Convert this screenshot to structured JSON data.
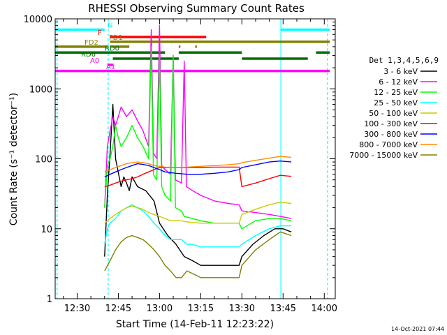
{
  "chart_data": {
    "type": "line",
    "title": "RHESSI Observing Summary Count Rates",
    "xlabel": "Start Time (14-Feb-11 12:23:22)",
    "ylabel": "Count Rate (s⁻¹ detector⁻¹)",
    "y_log": true,
    "ylim": [
      1,
      10000
    ],
    "xlim_minutes": [
      22.0,
      124.0
    ],
    "x_ticks": [
      {
        "minute": 30,
        "label": "12:30"
      },
      {
        "minute": 45,
        "label": "12:45"
      },
      {
        "minute": 60,
        "label": "13:00"
      },
      {
        "minute": 75,
        "label": "13:15"
      },
      {
        "minute": 90,
        "label": "13:30"
      },
      {
        "minute": 105,
        "label": "13:45"
      },
      {
        "minute": 120,
        "label": "14:00"
      }
    ],
    "y_ticks": [
      {
        "value": 1,
        "label": "1"
      },
      {
        "value": 10,
        "label": "10"
      },
      {
        "value": 100,
        "label": "100"
      },
      {
        "value": 1000,
        "label": "1000"
      },
      {
        "value": 10000,
        "label": "10000"
      }
    ],
    "legend_title": "Det 1,3,4,5,6,9",
    "legend_position": "right",
    "timestamp": "14-Oct-2021 07:44",
    "series": [
      {
        "name": "3 - 6 keV",
        "color": "#000000",
        "points": [
          [
            40,
            4
          ],
          [
            41,
            30
          ],
          [
            42,
            120
          ],
          [
            43,
            600
          ],
          [
            44,
            100
          ],
          [
            46,
            40
          ],
          [
            47,
            55
          ],
          [
            48,
            45
          ],
          [
            49,
            35
          ],
          [
            50,
            55
          ],
          [
            52,
            40
          ],
          [
            55,
            35
          ],
          [
            58,
            25
          ],
          [
            60,
            12
          ],
          [
            63,
            8
          ],
          [
            66,
            6
          ],
          [
            69,
            4
          ],
          [
            72,
            3.5
          ],
          [
            75,
            3
          ],
          [
            80,
            3
          ],
          [
            85,
            3
          ],
          [
            89,
            3
          ],
          [
            90,
            4
          ],
          [
            94,
            6
          ],
          [
            98,
            8
          ],
          [
            102,
            10
          ],
          [
            105,
            10
          ],
          [
            108,
            9
          ]
        ]
      },
      {
        "name": "6 - 12 keV",
        "color": "#ff00ff",
        "points": [
          [
            40,
            20
          ],
          [
            41,
            150
          ],
          [
            42,
            250
          ],
          [
            43,
            400
          ],
          [
            44,
            300
          ],
          [
            45,
            400
          ],
          [
            46,
            550
          ],
          [
            48,
            400
          ],
          [
            50,
            500
          ],
          [
            52,
            350
          ],
          [
            54,
            250
          ],
          [
            56,
            150
          ],
          [
            57,
            7000
          ],
          [
            57.8,
            120
          ],
          [
            59,
            100
          ],
          [
            60,
            8000
          ],
          [
            60.8,
            80
          ],
          [
            62,
            70
          ],
          [
            64,
            60
          ],
          [
            65,
            3000
          ],
          [
            65.8,
            50
          ],
          [
            68,
            45
          ],
          [
            69,
            2500
          ],
          [
            69.8,
            40
          ],
          [
            72,
            35
          ],
          [
            75,
            30
          ],
          [
            80,
            25
          ],
          [
            85,
            23
          ],
          [
            89,
            22
          ],
          [
            90,
            18
          ],
          [
            95,
            17
          ],
          [
            100,
            16
          ],
          [
            104,
            15
          ],
          [
            108,
            14
          ]
        ]
      },
      {
        "name": "12 - 25 keV",
        "color": "#00ff00",
        "points": [
          [
            40,
            20
          ],
          [
            41,
            80
          ],
          [
            42,
            100
          ],
          [
            43,
            150
          ],
          [
            44,
            300
          ],
          [
            45,
            200
          ],
          [
            46,
            150
          ],
          [
            48,
            200
          ],
          [
            50,
            300
          ],
          [
            52,
            200
          ],
          [
            54,
            150
          ],
          [
            56,
            100
          ],
          [
            57,
            4000
          ],
          [
            57.8,
            60
          ],
          [
            59,
            50
          ],
          [
            60,
            3000
          ],
          [
            60.8,
            40
          ],
          [
            62,
            30
          ],
          [
            64,
            25
          ],
          [
            65,
            3000
          ],
          [
            65.8,
            20
          ],
          [
            68,
            18
          ],
          [
            69,
            15
          ],
          [
            72,
            14
          ],
          [
            75,
            13
          ],
          [
            80,
            12
          ],
          [
            85,
            12
          ],
          [
            89,
            12
          ],
          [
            90,
            10
          ],
          [
            95,
            13
          ],
          [
            100,
            14
          ],
          [
            104,
            14
          ],
          [
            108,
            13
          ]
        ]
      },
      {
        "name": "25 - 50 keV",
        "color": "#00ffff",
        "points": [
          [
            40,
            6
          ],
          [
            41,
            10
          ],
          [
            42,
            12
          ],
          [
            44,
            14
          ],
          [
            46,
            18
          ],
          [
            48,
            20
          ],
          [
            50,
            22
          ],
          [
            52,
            20
          ],
          [
            54,
            18
          ],
          [
            56,
            15
          ],
          [
            58,
            12
          ],
          [
            60,
            10
          ],
          [
            62,
            8
          ],
          [
            64,
            7
          ],
          [
            66,
            7
          ],
          [
            68,
            7
          ],
          [
            70,
            6
          ],
          [
            72,
            6
          ],
          [
            75,
            5.5
          ],
          [
            80,
            5.5
          ],
          [
            85,
            5.5
          ],
          [
            89,
            5.5
          ],
          [
            90,
            6
          ],
          [
            95,
            8
          ],
          [
            100,
            10
          ],
          [
            104,
            11
          ],
          [
            108,
            11
          ]
        ]
      },
      {
        "name": "50 - 100 keV",
        "color": "#cccc00",
        "points": [
          [
            40,
            12
          ],
          [
            42,
            14
          ],
          [
            44,
            16
          ],
          [
            46,
            18
          ],
          [
            48,
            20
          ],
          [
            50,
            21
          ],
          [
            52,
            20
          ],
          [
            54,
            19
          ],
          [
            56,
            17
          ],
          [
            58,
            16
          ],
          [
            60,
            15
          ],
          [
            62,
            14
          ],
          [
            64,
            13
          ],
          [
            66,
            13
          ],
          [
            68,
            13
          ],
          [
            70,
            12.5
          ],
          [
            75,
            12
          ],
          [
            80,
            12
          ],
          [
            85,
            12
          ],
          [
            89,
            12
          ],
          [
            90,
            16
          ],
          [
            95,
            19
          ],
          [
            100,
            22
          ],
          [
            104,
            24
          ],
          [
            108,
            23
          ]
        ]
      },
      {
        "name": "100 - 300 keV",
        "color": "#ff0000",
        "points": [
          [
            40,
            40
          ],
          [
            42,
            42
          ],
          [
            44,
            45
          ],
          [
            46,
            48
          ],
          [
            48,
            50
          ],
          [
            50,
            52
          ],
          [
            52,
            55
          ],
          [
            54,
            60
          ],
          [
            56,
            65
          ],
          [
            58,
            70
          ],
          [
            60,
            75
          ],
          [
            62,
            75
          ],
          [
            66,
            75
          ],
          [
            70,
            75
          ],
          [
            75,
            75
          ],
          [
            80,
            76
          ],
          [
            85,
            76
          ],
          [
            89,
            76
          ],
          [
            90,
            40
          ],
          [
            95,
            45
          ],
          [
            100,
            52
          ],
          [
            104,
            58
          ],
          [
            108,
            56
          ]
        ]
      },
      {
        "name": "300 - 800 keV",
        "color": "#0000ff",
        "points": [
          [
            40,
            55
          ],
          [
            42,
            60
          ],
          [
            44,
            65
          ],
          [
            46,
            70
          ],
          [
            48,
            75
          ],
          [
            50,
            80
          ],
          [
            52,
            85
          ],
          [
            54,
            83
          ],
          [
            56,
            80
          ],
          [
            58,
            75
          ],
          [
            60,
            70
          ],
          [
            62,
            65
          ],
          [
            66,
            62
          ],
          [
            70,
            60
          ],
          [
            75,
            60
          ],
          [
            80,
            62
          ],
          [
            85,
            65
          ],
          [
            89,
            70
          ],
          [
            90,
            75
          ],
          [
            95,
            82
          ],
          [
            100,
            90
          ],
          [
            104,
            93
          ],
          [
            108,
            90
          ]
        ]
      },
      {
        "name": "800 - 7000 keV",
        "color": "#ff8c00",
        "points": [
          [
            40,
            65
          ],
          [
            42,
            70
          ],
          [
            44,
            75
          ],
          [
            46,
            80
          ],
          [
            48,
            85
          ],
          [
            50,
            88
          ],
          [
            52,
            90
          ],
          [
            54,
            88
          ],
          [
            56,
            85
          ],
          [
            58,
            80
          ],
          [
            60,
            78
          ],
          [
            62,
            76
          ],
          [
            66,
            75
          ],
          [
            70,
            76
          ],
          [
            75,
            78
          ],
          [
            80,
            80
          ],
          [
            85,
            82
          ],
          [
            89,
            85
          ],
          [
            90,
            88
          ],
          [
            95,
            95
          ],
          [
            100,
            102
          ],
          [
            104,
            108
          ],
          [
            108,
            105
          ]
        ]
      },
      {
        "name": "7000 - 15000 keV",
        "color": "#808000",
        "points": [
          [
            40,
            2.5
          ],
          [
            42,
            3.5
          ],
          [
            44,
            5
          ],
          [
            46,
            6.5
          ],
          [
            48,
            7.5
          ],
          [
            50,
            8
          ],
          [
            52,
            7.5
          ],
          [
            54,
            7
          ],
          [
            56,
            6
          ],
          [
            58,
            5
          ],
          [
            60,
            4
          ],
          [
            62,
            3
          ],
          [
            64,
            2.5
          ],
          [
            66,
            2
          ],
          [
            68,
            2
          ],
          [
            70,
            2.5
          ],
          [
            75,
            2
          ],
          [
            80,
            2
          ],
          [
            85,
            2
          ],
          [
            89,
            2
          ],
          [
            90,
            3
          ],
          [
            95,
            5
          ],
          [
            100,
            7
          ],
          [
            104,
            9
          ],
          [
            108,
            8
          ]
        ]
      }
    ],
    "flag_bars": [
      {
        "label": "N",
        "color": "#00ffff",
        "y": 7000,
        "segments": [
          [
            22,
            40
          ],
          [
            104,
            122
          ]
        ]
      },
      {
        "label": "F",
        "color": "#ff0000",
        "y": 5500,
        "segments": [
          [
            42,
            77
          ]
        ]
      },
      {
        "label": "FD1",
        "color": "#808000",
        "y": 4700,
        "segments": [
          [
            42,
            122
          ]
        ]
      },
      {
        "label": "FD2",
        "color": "#808000",
        "y": 4000,
        "segments": [
          [
            22,
            41
          ],
          [
            42,
            49
          ],
          [
            67,
            67.6
          ],
          [
            73,
            73.6
          ]
        ]
      },
      {
        "label": "RD0",
        "color": "#007000",
        "y": 3300,
        "segments": [
          [
            22,
            62
          ],
          [
            67,
            90
          ],
          [
            117,
            122
          ]
        ]
      },
      {
        "label": "RD6",
        "color": "#007000",
        "y": 2700,
        "segments": [
          [
            43,
            67
          ],
          [
            90,
            114
          ]
        ]
      },
      {
        "label": "A0",
        "color": "#ff00ff",
        "y": 2200,
        "segments": [
          [
            41,
            43
          ]
        ]
      },
      {
        "label": "A1",
        "color": "#ff00ff",
        "y": 1800,
        "segments": [
          [
            22,
            122
          ]
        ]
      }
    ],
    "vertical_lines": [
      {
        "minute": 22.7,
        "color": "#00ffff",
        "dashed": true
      },
      {
        "minute": 41.3,
        "color": "#00ffff",
        "dashed": true
      },
      {
        "minute": 104.2,
        "color": "#00ffff",
        "dashed": false
      },
      {
        "minute": 121.2,
        "color": "#00ffff",
        "dashed": true
      }
    ]
  }
}
